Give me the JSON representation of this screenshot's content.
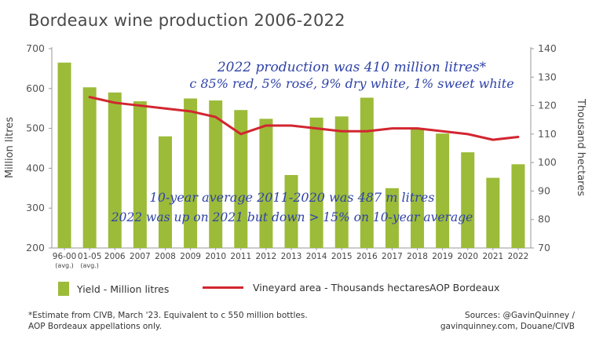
{
  "title": "Bordeaux wine production 2006-2022",
  "chart_data": {
    "type": "bar",
    "categories": [
      "96-00",
      "01-05",
      "2006",
      "2007",
      "2008",
      "2009",
      "2010",
      "2011",
      "2012",
      "2013",
      "2014",
      "2015",
      "2016",
      "2017",
      "2018",
      "2019",
      "2020",
      "2021",
      "2022"
    ],
    "category_sublabels": [
      "(avg.)",
      "(avg.)",
      "",
      "",
      "",
      "",
      "",
      "",
      "",
      "",
      "",
      "",
      "",
      "",
      "",
      "",
      "",
      "",
      ""
    ],
    "series": [
      {
        "name": "Yield - Million litres",
        "type": "bar",
        "axis": "left",
        "color": "#9cbb38",
        "values": [
          665,
          603,
          590,
          568,
          480,
          575,
          570,
          546,
          524,
          383,
          527,
          530,
          577,
          350,
          500,
          487,
          440,
          376,
          410
        ]
      },
      {
        "name": "Vineyard area - Thousands hectares",
        "type": "line",
        "axis": "right",
        "color": "#d22630",
        "values": [
          null,
          123,
          121,
          120,
          119,
          118,
          116,
          110,
          113,
          113,
          112,
          111,
          111,
          112,
          112,
          111,
          110,
          108,
          109
        ]
      }
    ],
    "ylabel": "Million litres",
    "y2label": "Thousand hectares",
    "ylim": [
      200,
      700
    ],
    "yticks": [
      200,
      300,
      400,
      500,
      600,
      700
    ],
    "y2lim": [
      70,
      140
    ],
    "y2ticks": [
      70,
      80,
      90,
      100,
      110,
      120,
      130,
      140
    ],
    "grid": false,
    "annotations": [
      "2022 production was 410 million litres*",
      "c 85% red, 5% rosé, 9% dry white, 1% sweet white",
      "10-year average 2011-2020 was 487 m litres",
      "2022 was up on 2021 but down > 15% on 10-year average"
    ]
  },
  "legend": {
    "bar_label": "Yield - Million litres",
    "line_label": "Vineyard area - Thousands hectares",
    "tag": "AOP Bordeaux"
  },
  "footnote": {
    "line1": "*Estimate from CIVB, March '23. Equivalent to c 550 million bottles.",
    "line2": "AOP Bordeaux appellations only."
  },
  "sources": {
    "line1": "Sources: @GavinQuinney /",
    "line2": "gavinquinney.com, Douane/CIVB"
  }
}
